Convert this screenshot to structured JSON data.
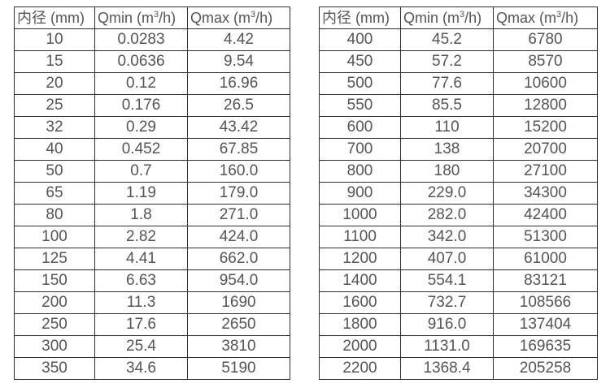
{
  "chart_data": [
    {
      "type": "table",
      "title": "",
      "columns": [
        "内径 (mm)",
        "Qmin (m³/h)",
        "Qmax (m³/h)"
      ],
      "header_parts": [
        {
          "pre": "内径 (mm)",
          "sup": "",
          "post": ""
        },
        {
          "pre": "Qmin (m",
          "sup": "3",
          "post": "/h)"
        },
        {
          "pre": "Qmax (m",
          "sup": "3",
          "post": "/h)"
        }
      ],
      "rows": [
        [
          "10",
          "0.0283",
          "4.42"
        ],
        [
          "15",
          "0.0636",
          "9.54"
        ],
        [
          "20",
          "0.12",
          "16.96"
        ],
        [
          "25",
          "0.176",
          "26.5"
        ],
        [
          "32",
          "0.29",
          "43.42"
        ],
        [
          "40",
          "0.452",
          "67.85"
        ],
        [
          "50",
          "0.7",
          "160.0"
        ],
        [
          "65",
          "1.19",
          "179.0"
        ],
        [
          "80",
          "1.8",
          "271.0"
        ],
        [
          "100",
          "2.82",
          "424.0"
        ],
        [
          "125",
          "4.41",
          "662.0"
        ],
        [
          "150",
          "6.63",
          "954.0"
        ],
        [
          "200",
          "11.3",
          "1690"
        ],
        [
          "250",
          "17.6",
          "2650"
        ],
        [
          "300",
          "25.4",
          "3810"
        ],
        [
          "350",
          "34.6",
          "5190"
        ]
      ]
    },
    {
      "type": "table",
      "title": "",
      "columns": [
        "内径 (mm)",
        "Qmin (m³/h)",
        "Qmax (m³/h)"
      ],
      "header_parts": [
        {
          "pre": "内径 (mm)",
          "sup": "",
          "post": ""
        },
        {
          "pre": "Qmin (m",
          "sup": "3",
          "post": "/h)"
        },
        {
          "pre": "Qmax (m",
          "sup": "3",
          "post": "/h)"
        }
      ],
      "rows": [
        [
          "400",
          "45.2",
          "6780"
        ],
        [
          "450",
          "57.2",
          "8570"
        ],
        [
          "500",
          "77.6",
          "10600"
        ],
        [
          "550",
          "85.5",
          "12800"
        ],
        [
          "600",
          "110",
          "15200"
        ],
        [
          "700",
          "138",
          "20700"
        ],
        [
          "800",
          "180",
          "27100"
        ],
        [
          "900",
          "229.0",
          "34300"
        ],
        [
          "1000",
          "282.0",
          "42400"
        ],
        [
          "1100",
          "342.0",
          "51300"
        ],
        [
          "1200",
          "407.0",
          "61000"
        ],
        [
          "1400",
          "554.1",
          "83121"
        ],
        [
          "1600",
          "732.7",
          "108566"
        ],
        [
          "1800",
          "916.0",
          "137404"
        ],
        [
          "2000",
          "1131.0",
          "169635"
        ],
        [
          "2200",
          "1368.4",
          "205258"
        ]
      ]
    }
  ],
  "colors": {
    "text": "#555555",
    "border": "#303030",
    "background": "#ffffff"
  }
}
